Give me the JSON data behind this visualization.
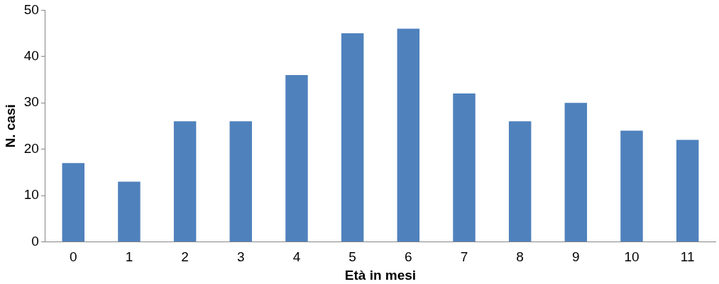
{
  "chart_data": {
    "type": "bar",
    "xlabel": "Età in mesi",
    "ylabel": "N. casi",
    "categories": [
      "0",
      "1",
      "2",
      "3",
      "4",
      "5",
      "6",
      "7",
      "8",
      "9",
      "10",
      "11"
    ],
    "values": [
      17,
      13,
      26,
      26,
      36,
      45,
      46,
      32,
      26,
      30,
      24,
      22
    ],
    "color": "#4f81bd",
    "ylim": [
      0,
      50
    ],
    "yticks": [
      0,
      10,
      20,
      30,
      40,
      50
    ],
    "grid": false,
    "legend": false
  }
}
